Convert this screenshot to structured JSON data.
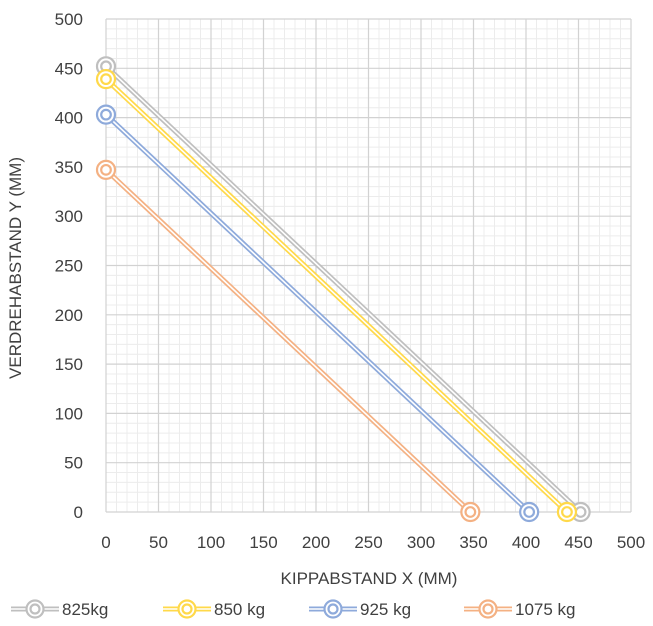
{
  "chart_data": {
    "type": "line",
    "xlabel": "KIPPABSTAND X  (MM)",
    "ylabel": "VERDREHABSTAND Y  (MM)",
    "xlim": [
      0,
      500
    ],
    "ylim": [
      0,
      500
    ],
    "x_ticks": [
      0,
      50,
      100,
      150,
      200,
      250,
      300,
      350,
      400,
      450,
      500
    ],
    "y_ticks": [
      0,
      50,
      100,
      150,
      200,
      250,
      300,
      350,
      400,
      450,
      500
    ],
    "grid": true,
    "minor_grid": true,
    "legend_position": "bottom",
    "series": [
      {
        "name": "825kg",
        "color": "#bfbfbf",
        "x": [
          0,
          452
        ],
        "y": [
          452,
          0
        ]
      },
      {
        "name": "850 kg",
        "color": "#ffd94a",
        "x": [
          0,
          439
        ],
        "y": [
          439,
          0
        ]
      },
      {
        "name": "925 kg",
        "color": "#8eaadb",
        "x": [
          0,
          403
        ],
        "y": [
          403,
          0
        ]
      },
      {
        "name": "1075 kg",
        "color": "#f4b183",
        "x": [
          0,
          347
        ],
        "y": [
          347,
          0
        ]
      }
    ]
  }
}
